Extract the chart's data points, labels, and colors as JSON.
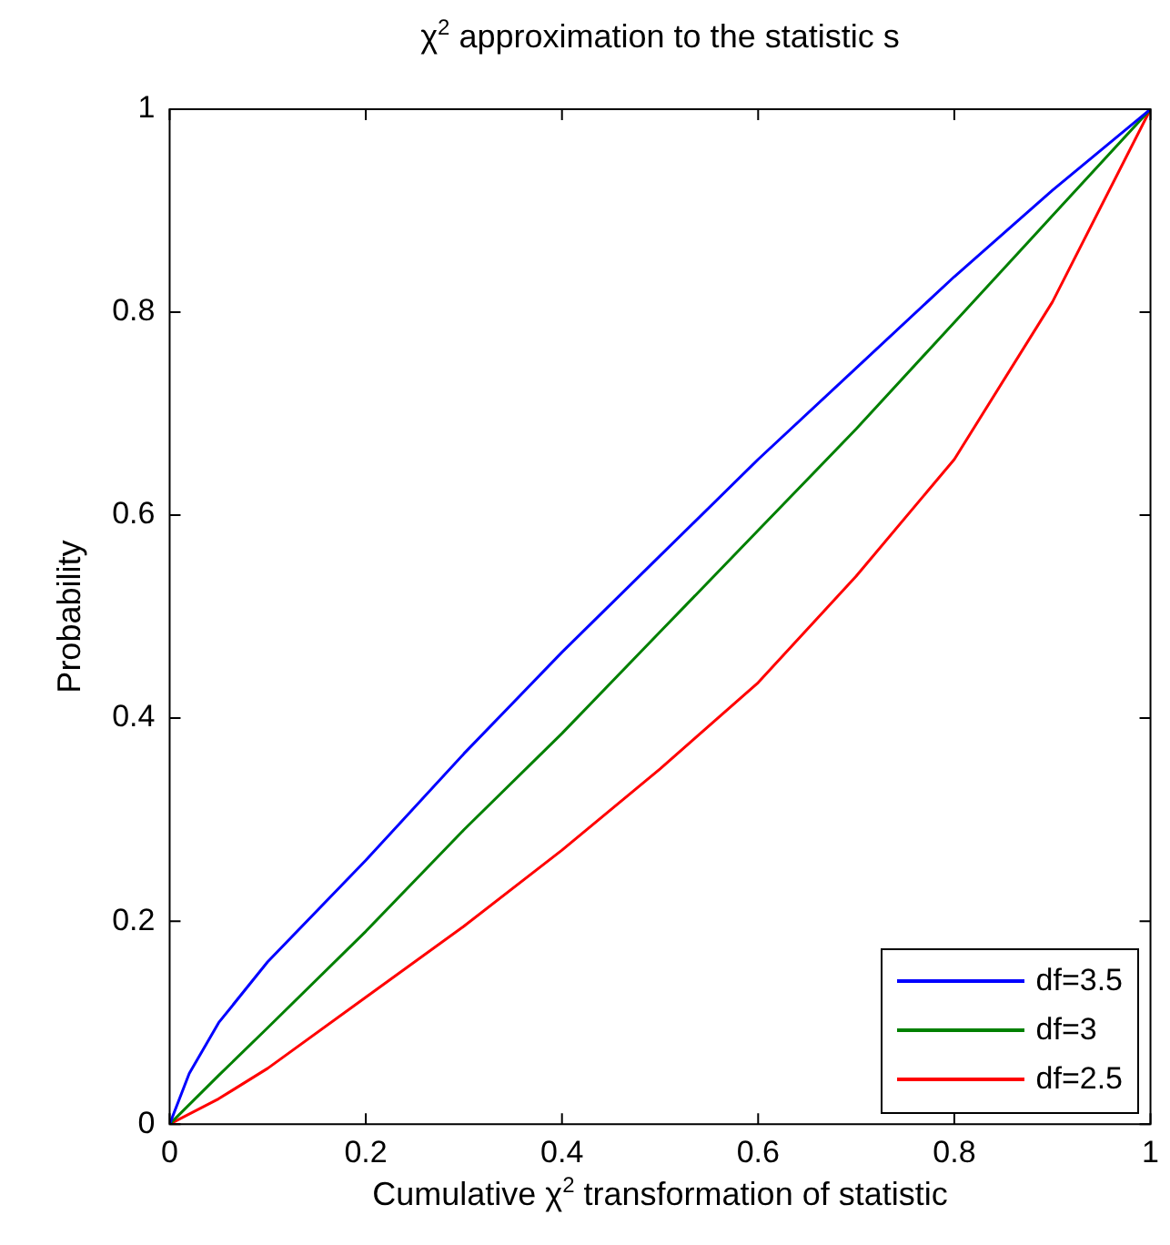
{
  "chart_data": {
    "type": "line",
    "title": "χ$^{2}$ approximation to the statistic s",
    "xlabel": "Cumulative χ$^{2}$ transformation of statistic",
    "ylabel": "Probability",
    "xlim": [
      0,
      1
    ],
    "xticks": [
      0,
      0.2,
      0.4,
      0.6,
      0.8,
      1
    ],
    "ylim": [
      0,
      1
    ],
    "yticks": [
      0,
      0.2,
      0.4,
      0.6,
      0.8,
      1
    ],
    "grid": false,
    "legend": "bottom right",
    "marker": "none",
    "line_style": "solid",
    "series": [
      {
        "name": "df=3.5",
        "color": "#0000ff",
        "x": [
          0,
          0.02,
          0.05,
          0.1,
          0.2,
          0.3,
          0.4,
          0.5,
          0.6,
          0.7,
          0.8,
          0.9,
          1
        ],
        "values": [
          0,
          0.05,
          0.1,
          0.16,
          0.26,
          0.365,
          0.465,
          0.56,
          0.655,
          0.745,
          0.835,
          0.92,
          1
        ]
      },
      {
        "name": "df=3",
        "color": "#008000",
        "x": [
          0,
          0.05,
          0.1,
          0.2,
          0.3,
          0.4,
          0.5,
          0.6,
          0.7,
          0.8,
          0.9,
          1
        ],
        "values": [
          0,
          0.048,
          0.095,
          0.19,
          0.29,
          0.385,
          0.485,
          0.585,
          0.685,
          0.79,
          0.895,
          1
        ]
      },
      {
        "name": "df=2.5",
        "color": "#ff0000",
        "x": [
          0,
          0.05,
          0.1,
          0.2,
          0.3,
          0.4,
          0.5,
          0.6,
          0.7,
          0.8,
          0.9,
          1
        ],
        "values": [
          0,
          0.025,
          0.055,
          0.125,
          0.195,
          0.27,
          0.35,
          0.435,
          0.54,
          0.655,
          0.81,
          1
        ]
      }
    ]
  }
}
